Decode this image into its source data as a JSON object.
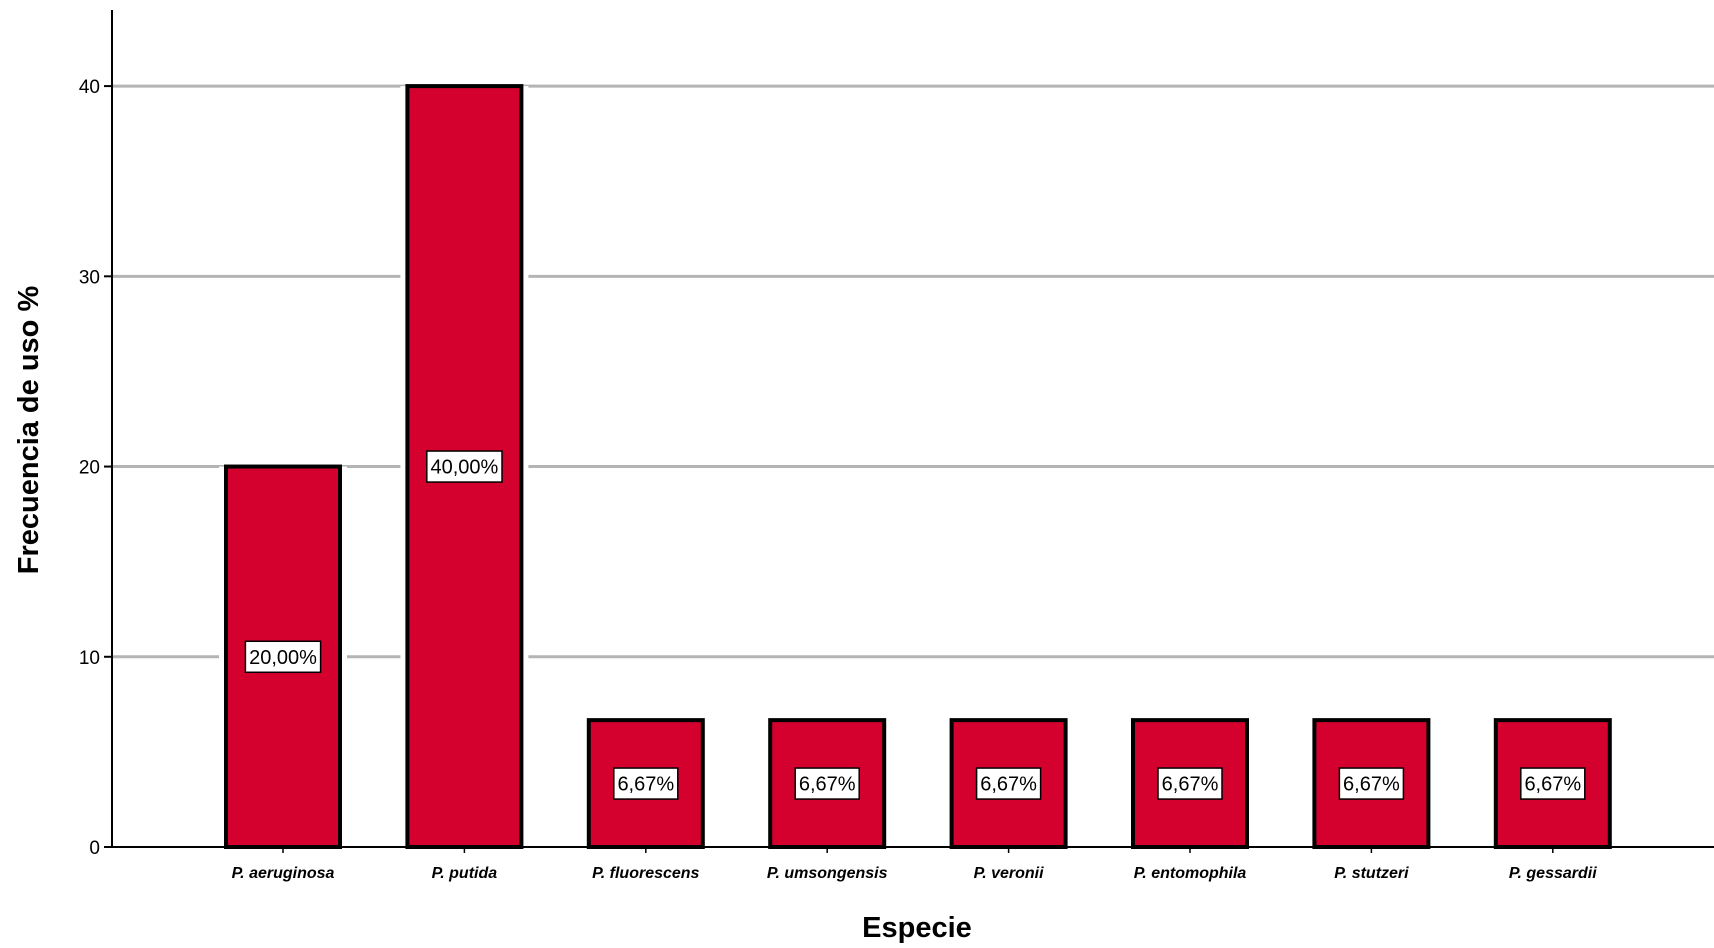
{
  "chart_data": {
    "type": "bar",
    "xlabel": "Especie",
    "ylabel": "Frecuencia de uso %",
    "ylim": [
      0,
      44
    ],
    "yticks": [
      0,
      10,
      20,
      30,
      40
    ],
    "grid": true,
    "bar_color": "#d4002d",
    "categories": [
      "P. aeruginosa",
      "P. putida",
      "P. fluorescens",
      "P. umsongensis",
      "P. veronii",
      "P. entomophila",
      "P. stutzeri",
      "P. gessardii"
    ],
    "values": [
      20.0,
      40.0,
      6.67,
      6.67,
      6.67,
      6.67,
      6.67,
      6.67
    ],
    "data_labels": [
      "20,00%",
      "40,00%",
      "6,67%",
      "6,67%",
      "6,67%",
      "6,67%",
      "6,67%",
      "6,67%"
    ]
  }
}
